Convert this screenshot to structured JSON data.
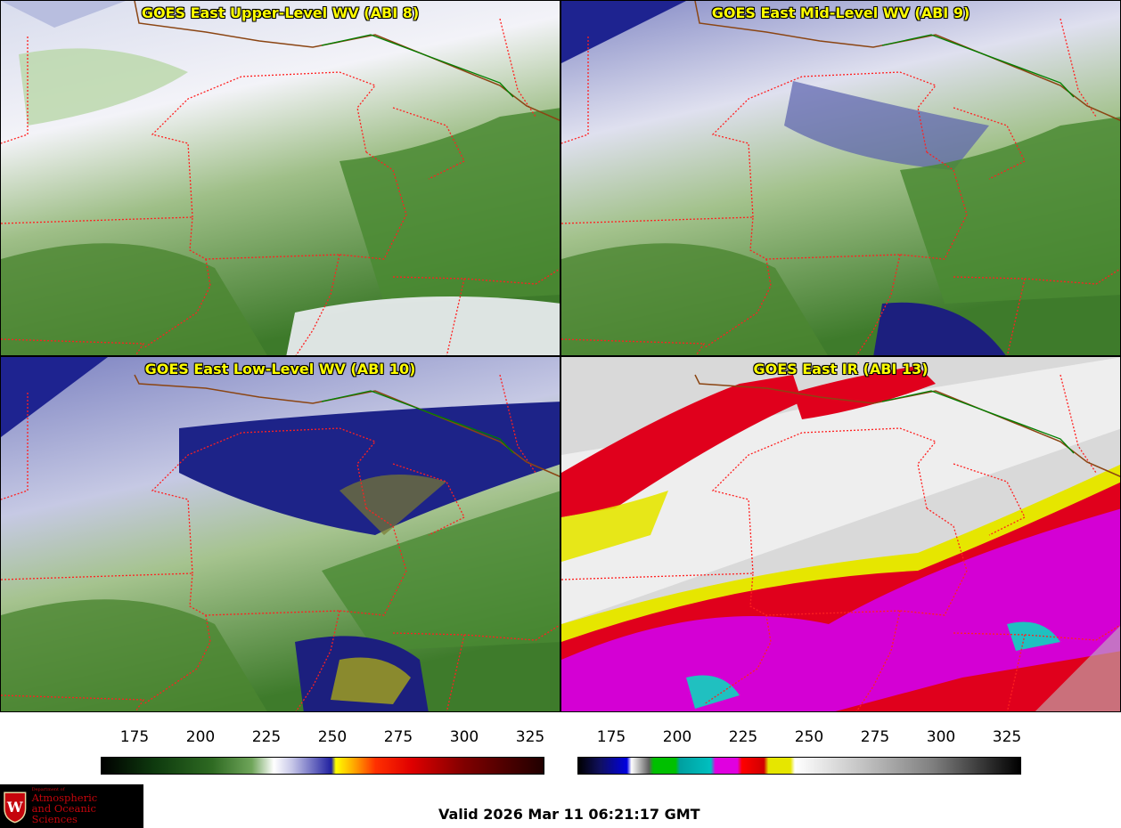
{
  "panels": [
    {
      "id": "upper",
      "title": "GOES East Upper-Level WV (ABI 8)"
    },
    {
      "id": "mid",
      "title": "GOES East Mid-Level WV (ABI 9)"
    },
    {
      "id": "low",
      "title": "GOES East Low-Level WV (ABI 10)"
    },
    {
      "id": "ir",
      "title": "GOES East IR (ABI 13)"
    }
  ],
  "colorbars": {
    "wv": {
      "ticks": [
        "175",
        "200",
        "225",
        "250",
        "275",
        "300",
        "325"
      ]
    },
    "ir": {
      "ticks": [
        "175",
        "200",
        "225",
        "250",
        "275",
        "300",
        "325"
      ]
    }
  },
  "logo": {
    "department": "Department of",
    "line1": "Atmospheric",
    "line2": "and Oceanic Sciences"
  },
  "valid_time": "Valid 2026 Mar 11 06:21:17 GMT",
  "colors": {
    "wv_green": "#3f7a2a",
    "wv_white": "#f2f2f8",
    "wv_blue": "#1c1f8a",
    "ir_magenta": "#d400d4",
    "ir_red": "#e0001c",
    "ir_yellow": "#e6e600",
    "border_state": "#ff2020",
    "border_country": "#8b4513",
    "border_green": "#008000"
  }
}
